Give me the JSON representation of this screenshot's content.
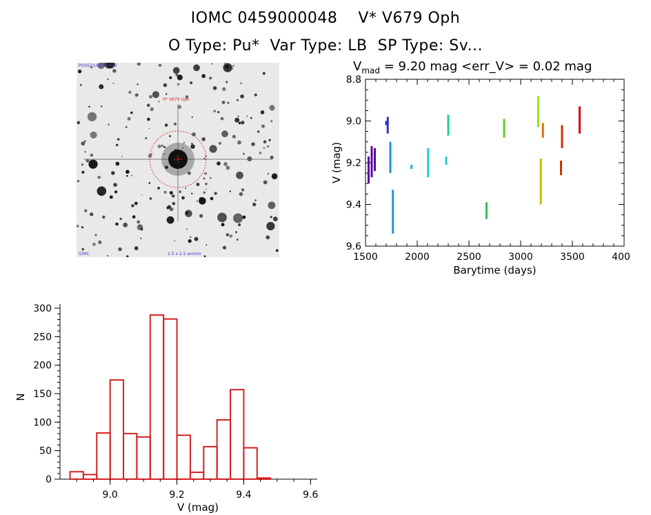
{
  "header": {
    "title_line1": "IOMC 0459000048    V* V679 Oph",
    "title_line2": "O Type: Pu*  Var Type: LB  SP Type: Sv..."
  },
  "image_stamp": {
    "target_label": "V* V679 Oph",
    "corner_top_left": "POSS2/UKSTU Red",
    "corner_bottom_left": "IOMC",
    "corner_bottom_center": "2.5 x 2.5 arcmin"
  },
  "lightcurve_header": {
    "v_prefix": "V",
    "v_sub": "mad",
    "v_rest": " = 9.20 mag <err_V> = 0.02 mag"
  },
  "chart_data": [
    {
      "type": "scatter",
      "xlabel": "Barytime (days)",
      "ylabel": "V (mag)",
      "xlim": [
        1500,
        4000
      ],
      "ylim": [
        9.6,
        8.8
      ],
      "y_inverted": true,
      "x_ticks": [
        1500,
        2000,
        2500,
        3000,
        3500,
        4000
      ],
      "y_ticks": [
        8.8,
        9.0,
        9.2,
        9.4,
        9.6
      ],
      "x_tick_labels": [
        "1500",
        "2000",
        "2500",
        "3000",
        "3500",
        "4000"
      ],
      "y_tick_labels": [
        "8.8",
        "9.0",
        "9.2",
        "9.4",
        "9.6"
      ],
      "colors": [
        "#5a00a0",
        "#3030c8",
        "#2090e0",
        "#20b0e0",
        "#20d0d0",
        "#20d090",
        "#30c050",
        "#60d020",
        "#a0e020",
        "#c0c000",
        "#e07000",
        "#d03000",
        "#d00000"
      ],
      "segments": [
        {
          "x": 1530,
          "ymin": 9.17,
          "ymax": 9.3,
          "color": "#5a00a0"
        },
        {
          "x": 1560,
          "ymin": 9.12,
          "ymax": 9.27,
          "color": "#5a00a0"
        },
        {
          "x": 1590,
          "ymin": 9.13,
          "ymax": 9.24,
          "color": "#5a00a0"
        },
        {
          "x": 1700,
          "ymin": 9.0,
          "ymax": 9.02,
          "color": "#3030c8"
        },
        {
          "x": 1715,
          "ymin": 8.98,
          "ymax": 9.06,
          "color": "#3030c8"
        },
        {
          "x": 1740,
          "ymin": 9.1,
          "ymax": 9.25,
          "color": "#2090e0"
        },
        {
          "x": 1765,
          "ymin": 9.33,
          "ymax": 9.54,
          "color": "#2090e0"
        },
        {
          "x": 1945,
          "ymin": 9.21,
          "ymax": 9.23,
          "color": "#20b0e0"
        },
        {
          "x": 2105,
          "ymin": 9.13,
          "ymax": 9.27,
          "color": "#20d0d0"
        },
        {
          "x": 2280,
          "ymin": 9.17,
          "ymax": 9.21,
          "color": "#20d0d0"
        },
        {
          "x": 2300,
          "ymin": 8.97,
          "ymax": 9.07,
          "color": "#20d090"
        },
        {
          "x": 2670,
          "ymin": 9.39,
          "ymax": 9.47,
          "color": "#30c050"
        },
        {
          "x": 2840,
          "ymin": 8.99,
          "ymax": 9.08,
          "color": "#60d020"
        },
        {
          "x": 3170,
          "ymin": 8.88,
          "ymax": 9.03,
          "color": "#a0e020"
        },
        {
          "x": 3195,
          "ymin": 9.18,
          "ymax": 9.4,
          "color": "#c0c000"
        },
        {
          "x": 3215,
          "ymin": 9.01,
          "ymax": 9.08,
          "color": "#e07000"
        },
        {
          "x": 3390,
          "ymin": 9.19,
          "ymax": 9.26,
          "color": "#d03000"
        },
        {
          "x": 3400,
          "ymin": 9.02,
          "ymax": 9.13,
          "color": "#d03000"
        },
        {
          "x": 3570,
          "ymin": 8.93,
          "ymax": 9.06,
          "color": "#d00000"
        }
      ]
    },
    {
      "type": "bar",
      "histogram": true,
      "xlabel": "V (mag)",
      "ylabel": "N",
      "xlim": [
        8.85,
        9.62
      ],
      "ylim": [
        0,
        300
      ],
      "bin_width": 0.04,
      "bin_starts": [
        8.88,
        8.92,
        8.96,
        9.0,
        9.04,
        9.08,
        9.12,
        9.16,
        9.2,
        9.24,
        9.28,
        9.32,
        9.36,
        9.4,
        9.44,
        9.48,
        9.52
      ],
      "values": [
        13,
        8,
        81,
        174,
        80,
        74,
        288,
        281,
        77,
        12,
        57,
        104,
        157,
        55,
        2,
        0,
        0
      ],
      "x_ticks": [
        9.0,
        9.2,
        9.4,
        9.6
      ],
      "x_tick_labels": [
        "9.0",
        "9.2",
        "9.4",
        "9.6"
      ],
      "y_ticks": [
        0,
        50,
        100,
        150,
        200,
        250,
        300
      ],
      "y_tick_labels": [
        "0",
        "50",
        "100",
        "150",
        "200",
        "250",
        "300"
      ],
      "bar_color": "#d42020"
    }
  ]
}
